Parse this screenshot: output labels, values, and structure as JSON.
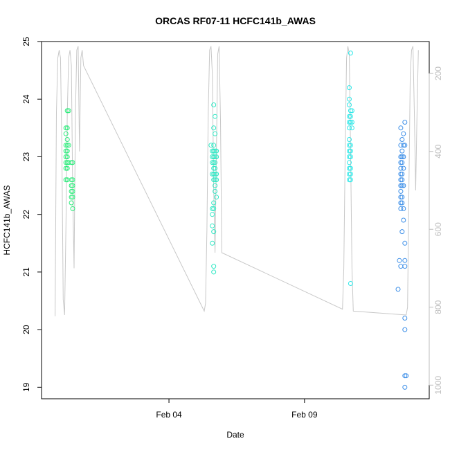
{
  "chart_data": {
    "type": "scatter",
    "title": "ORCAS RF07-11 HCFC141b_AWAS",
    "xlabel": "Date",
    "ylabel": "HCFC141b_AWAS",
    "x_unit": "day of February (decimal)",
    "xlim": [
      31.3,
      45.6
    ],
    "ylim": [
      18.8,
      25.0
    ],
    "x_ticks": [
      {
        "value": 36,
        "label": "Feb 04"
      },
      {
        "value": 41,
        "label": "Feb 09"
      }
    ],
    "y_ticks": [
      19,
      20,
      21,
      22,
      23,
      24,
      25
    ],
    "right_axis": {
      "ticks": [
        200,
        400,
        600,
        800,
        1000
      ],
      "reversed": true,
      "color": "#bdbdbd",
      "lim": [
        118,
        1035
      ]
    },
    "grid": false,
    "legend": "none",
    "series": [
      {
        "color": "#2bec7a",
        "points": [
          [
            32.25,
            23.8
          ],
          [
            32.3,
            23.8
          ],
          [
            32.2,
            23.5
          ],
          [
            32.25,
            23.5
          ],
          [
            32.2,
            23.4
          ],
          [
            32.25,
            23.3
          ],
          [
            32.2,
            23.2
          ],
          [
            32.25,
            23.2
          ],
          [
            32.3,
            23.2
          ],
          [
            32.2,
            23.1
          ],
          [
            32.25,
            23.1
          ],
          [
            32.2,
            23.0
          ],
          [
            32.25,
            23.0
          ],
          [
            32.2,
            22.9
          ],
          [
            32.25,
            22.9
          ],
          [
            32.3,
            22.9
          ],
          [
            32.2,
            22.8
          ],
          [
            32.25,
            22.8
          ],
          [
            32.2,
            22.6
          ],
          [
            32.25,
            22.6
          ]
        ]
      },
      {
        "color": "#2bec7a",
        "points": [
          [
            32.4,
            22.9
          ],
          [
            32.45,
            22.9
          ],
          [
            32.4,
            22.6
          ],
          [
            32.45,
            22.6
          ],
          [
            32.4,
            22.5
          ],
          [
            32.45,
            22.5
          ],
          [
            32.4,
            22.4
          ],
          [
            32.45,
            22.4
          ],
          [
            32.4,
            22.3
          ],
          [
            32.45,
            22.3
          ],
          [
            32.4,
            22.2
          ],
          [
            32.45,
            22.1
          ]
        ]
      },
      {
        "color": "#2ee8c4",
        "points": [
          [
            37.65,
            23.9
          ],
          [
            37.7,
            23.7
          ],
          [
            37.65,
            23.5
          ],
          [
            37.7,
            23.4
          ],
          [
            37.55,
            23.2
          ],
          [
            37.65,
            23.2
          ],
          [
            37.6,
            23.1
          ],
          [
            37.65,
            23.1
          ],
          [
            37.7,
            23.1
          ],
          [
            37.75,
            23.1
          ],
          [
            37.6,
            23.0
          ],
          [
            37.65,
            23.0
          ],
          [
            37.7,
            23.0
          ],
          [
            37.75,
            23.0
          ],
          [
            37.6,
            22.9
          ],
          [
            37.65,
            22.9
          ],
          [
            37.7,
            22.9
          ],
          [
            37.65,
            22.8
          ],
          [
            37.7,
            22.8
          ],
          [
            37.6,
            22.7
          ],
          [
            37.65,
            22.7
          ],
          [
            37.7,
            22.7
          ],
          [
            37.75,
            22.7
          ],
          [
            37.65,
            22.6
          ],
          [
            37.7,
            22.6
          ],
          [
            37.75,
            22.6
          ],
          [
            37.7,
            22.5
          ],
          [
            37.7,
            22.4
          ],
          [
            37.75,
            22.3
          ],
          [
            37.65,
            22.2
          ],
          [
            37.6,
            22.1
          ],
          [
            37.65,
            22.1
          ],
          [
            37.6,
            22.0
          ],
          [
            37.6,
            21.8
          ],
          [
            37.65,
            21.7
          ],
          [
            37.6,
            21.5
          ],
          [
            37.65,
            21.1
          ],
          [
            37.65,
            21.0
          ]
        ]
      },
      {
        "color": "#2ee8e8",
        "points": [
          [
            42.7,
            24.8
          ],
          [
            42.65,
            24.2
          ],
          [
            42.65,
            24.0
          ],
          [
            42.65,
            23.9
          ],
          [
            42.7,
            23.8
          ],
          [
            42.75,
            23.8
          ],
          [
            42.65,
            23.7
          ],
          [
            42.7,
            23.7
          ],
          [
            42.65,
            23.6
          ],
          [
            42.7,
            23.6
          ],
          [
            42.75,
            23.6
          ],
          [
            42.65,
            23.5
          ],
          [
            42.75,
            23.5
          ],
          [
            42.65,
            23.3
          ],
          [
            42.65,
            23.2
          ],
          [
            42.7,
            23.2
          ],
          [
            42.65,
            23.1
          ],
          [
            42.7,
            23.1
          ],
          [
            42.65,
            23.0
          ],
          [
            42.7,
            23.0
          ],
          [
            42.65,
            22.9
          ],
          [
            42.65,
            22.8
          ],
          [
            42.7,
            22.8
          ],
          [
            42.65,
            22.7
          ],
          [
            42.7,
            22.7
          ],
          [
            42.65,
            22.6
          ],
          [
            42.7,
            22.6
          ],
          [
            42.7,
            20.8
          ]
        ]
      },
      {
        "color": "#3d8fe8",
        "points": [
          [
            44.55,
            23.5
          ],
          [
            44.7,
            23.6
          ],
          [
            44.65,
            23.4
          ],
          [
            44.6,
            23.3
          ],
          [
            44.55,
            23.2
          ],
          [
            44.65,
            23.2
          ],
          [
            44.7,
            23.2
          ],
          [
            44.6,
            23.1
          ],
          [
            44.55,
            23.0
          ],
          [
            44.6,
            23.0
          ],
          [
            44.65,
            23.0
          ],
          [
            44.55,
            22.9
          ],
          [
            44.6,
            22.9
          ],
          [
            44.55,
            22.8
          ],
          [
            44.65,
            22.8
          ],
          [
            44.55,
            22.7
          ],
          [
            44.6,
            22.7
          ],
          [
            44.55,
            22.6
          ],
          [
            44.6,
            22.6
          ],
          [
            44.55,
            22.5
          ],
          [
            44.6,
            22.5
          ],
          [
            44.65,
            22.5
          ],
          [
            44.55,
            22.4
          ],
          [
            44.55,
            22.3
          ],
          [
            44.6,
            22.3
          ],
          [
            44.55,
            22.2
          ],
          [
            44.6,
            22.2
          ],
          [
            44.55,
            22.1
          ],
          [
            44.65,
            22.1
          ],
          [
            44.65,
            21.9
          ],
          [
            44.6,
            21.7
          ],
          [
            44.7,
            21.5
          ],
          [
            44.5,
            21.2
          ],
          [
            44.7,
            21.2
          ],
          [
            44.55,
            21.1
          ],
          [
            44.7,
            21.1
          ],
          [
            44.45,
            20.7
          ],
          [
            44.7,
            20.2
          ],
          [
            44.7,
            20.0
          ],
          [
            44.7,
            19.2
          ],
          [
            44.75,
            19.2
          ],
          [
            44.7,
            19.0
          ]
        ]
      }
    ],
    "altitude_trace": {
      "color": "#c8c8c8",
      "points": [
        [
          31.8,
          823
        ],
        [
          31.85,
          300
        ],
        [
          31.9,
          160
        ],
        [
          31.95,
          140
        ],
        [
          32.0,
          160
        ],
        [
          32.05,
          400
        ],
        [
          32.1,
          780
        ],
        [
          32.15,
          820
        ],
        [
          32.2,
          600
        ],
        [
          32.25,
          300
        ],
        [
          32.3,
          160
        ],
        [
          32.35,
          140
        ],
        [
          32.4,
          180
        ],
        [
          32.45,
          500
        ],
        [
          32.5,
          700
        ],
        [
          32.55,
          300
        ],
        [
          32.6,
          140
        ],
        [
          32.65,
          130
        ],
        [
          32.7,
          400
        ],
        [
          32.75,
          160
        ],
        [
          32.8,
          140
        ],
        [
          32.85,
          180
        ],
        [
          37.3,
          810
        ],
        [
          37.35,
          790
        ],
        [
          37.4,
          600
        ],
        [
          37.45,
          300
        ],
        [
          37.5,
          140
        ],
        [
          37.55,
          130
        ],
        [
          37.6,
          200
        ],
        [
          37.65,
          500
        ],
        [
          37.7,
          660
        ],
        [
          37.75,
          400
        ],
        [
          37.8,
          150
        ],
        [
          37.85,
          130
        ],
        [
          37.9,
          320
        ],
        [
          37.95,
          660
        ],
        [
          42.4,
          805
        ],
        [
          42.45,
          700
        ],
        [
          42.5,
          400
        ],
        [
          42.55,
          160
        ],
        [
          42.6,
          130
        ],
        [
          42.65,
          150
        ],
        [
          42.7,
          400
        ],
        [
          42.75,
          700
        ],
        [
          42.8,
          810
        ],
        [
          44.75,
          820
        ],
        [
          44.8,
          800
        ],
        [
          44.85,
          500
        ],
        [
          44.9,
          200
        ],
        [
          44.95,
          140
        ],
        [
          45.0,
          130
        ],
        [
          45.05,
          300
        ],
        [
          45.1,
          500
        ],
        [
          45.15,
          300
        ],
        [
          45.2,
          140
        ]
      ]
    }
  }
}
